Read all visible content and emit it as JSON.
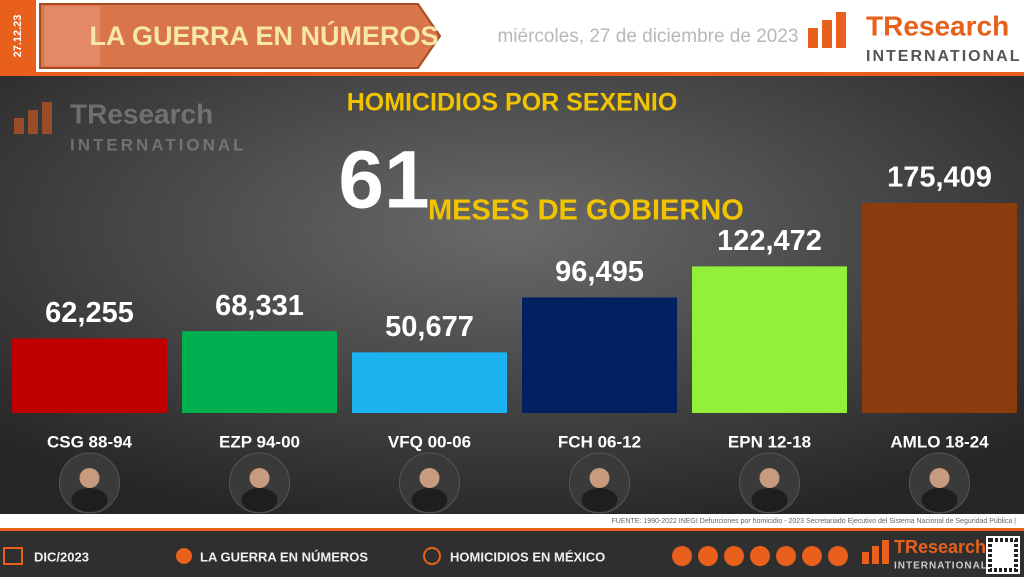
{
  "header": {
    "date_short": "27.12.23",
    "section": "LA GUERRA EN NÚMEROS",
    "date_long": "miércoles, 27 de diciembre de 2023",
    "brand": "TResearch",
    "brand_sub": "INTERNATIONAL"
  },
  "chart_data": {
    "type": "bar",
    "title": "HOMICIDIOS POR SEXENIO",
    "annotations": [
      "61",
      "MESES DE GOBIERNO"
    ],
    "categories": [
      "CSG 88-94",
      "EZP 94-00",
      "VFQ 00-06",
      "FCH 06-12",
      "EPN 12-18",
      "AMLO 18-24"
    ],
    "values": [
      62255,
      68331,
      50677,
      96495,
      122472,
      175409
    ],
    "value_labels": [
      "62,255",
      "68,331",
      "50,677",
      "96,495",
      "122,472",
      "175,409"
    ],
    "colors": [
      "#c00000",
      "#00b050",
      "#1cb4f0",
      "#002060",
      "#92f03a",
      "#8a3c0e"
    ]
  },
  "source": "FUENTE: 1990-2022 INEGI Defunciones por homicidio - 2023 Secretariado Ejecutivo del Sistema Nacional de Seguridad Pública |",
  "footer": {
    "items": [
      "DIC/2023",
      "LA GUERRA EN NÚMEROS",
      "HOMICIDIOS EN MÉXICO"
    ],
    "brand": "TResearch",
    "brand_sub": "INTERNATIONAL"
  }
}
